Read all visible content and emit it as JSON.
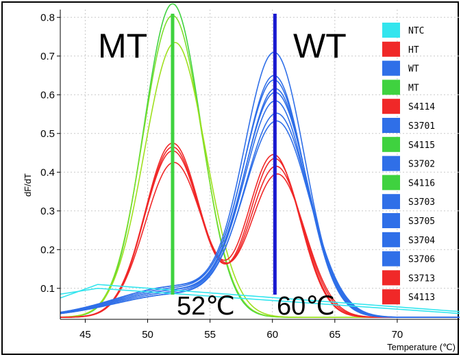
{
  "chart_data": {
    "type": "line",
    "title": "",
    "xlabel": "Temperature (℃)",
    "ylabel": "dF/dT",
    "xlim": [
      43,
      75
    ],
    "ylim": [
      0.02,
      0.82
    ],
    "x_ticks": [
      "45",
      "50",
      "55",
      "60",
      "65",
      "70"
    ],
    "x_tick_values": [
      45,
      50,
      55,
      60,
      65,
      70
    ],
    "y_ticks": [
      "0.1",
      "0.2",
      "0.3",
      "0.4",
      "0.5",
      "0.6",
      "0.7",
      "0.8"
    ],
    "y_tick_values": [
      0.1,
      0.2,
      0.3,
      0.4,
      0.5,
      0.6,
      0.7,
      0.8
    ],
    "grid": true,
    "legend_position": "right",
    "legend": [
      {
        "name": "NTC",
        "color": "#33e5ee"
      },
      {
        "name": "HT",
        "color": "#f02828"
      },
      {
        "name": "WT",
        "color": "#2f6fe8"
      },
      {
        "name": "MT",
        "color": "#3fd23f"
      },
      {
        "name": "S4114",
        "color": "#f02828"
      },
      {
        "name": "S3701",
        "color": "#2f6fe8"
      },
      {
        "name": "S4115",
        "color": "#3fd23f"
      },
      {
        "name": "S3702",
        "color": "#2f6fe8"
      },
      {
        "name": "S4116",
        "color": "#3fd23f"
      },
      {
        "name": "S3703",
        "color": "#2f6fe8"
      },
      {
        "name": "S3705",
        "color": "#2f6fe8"
      },
      {
        "name": "S3704",
        "color": "#2f6fe8"
      },
      {
        "name": "S3706",
        "color": "#2f6fe8"
      },
      {
        "name": "S3713",
        "color": "#f02828"
      },
      {
        "name": "S4113",
        "color": "#f02828"
      }
    ],
    "annotations": {
      "mt_label": "MT",
      "wt_label": "WT",
      "mt_temp": "52℃",
      "wt_temp": "60℃",
      "mt_peak_x": 52,
      "wt_peak_x": 60.2
    },
    "series": [
      {
        "group": "MT",
        "color": "#3fd23f",
        "peaks": [
          {
            "center": 52,
            "height": 0.81,
            "width": 2.3
          }
        ],
        "baseline": 0.025
      },
      {
        "group": "MT",
        "color": "#7ddf2c",
        "peaks": [
          {
            "center": 52,
            "height": 0.78,
            "width": 2.35
          }
        ],
        "baseline": 0.025
      },
      {
        "group": "MT",
        "color": "#9fe01e",
        "peaks": [
          {
            "center": 52.2,
            "height": 0.71,
            "width": 2.45
          }
        ],
        "baseline": 0.025
      },
      {
        "group": "HT",
        "color": "#f02828",
        "peaks": [
          {
            "center": 52,
            "height": 0.45,
            "width": 2.2
          },
          {
            "center": 60.1,
            "height": 0.42,
            "width": 2.1
          }
        ],
        "baseline": 0.025
      },
      {
        "group": "HT",
        "color": "#f02828",
        "peaks": [
          {
            "center": 52,
            "height": 0.44,
            "width": 2.2
          },
          {
            "center": 60.2,
            "height": 0.41,
            "width": 2.1
          }
        ],
        "baseline": 0.025
      },
      {
        "group": "HT",
        "color": "#f02828",
        "peaks": [
          {
            "center": 52,
            "height": 0.43,
            "width": 2.25
          },
          {
            "center": 60.3,
            "height": 0.39,
            "width": 2.15
          }
        ],
        "baseline": 0.025
      },
      {
        "group": "HT",
        "color": "#f02828",
        "peaks": [
          {
            "center": 52.1,
            "height": 0.4,
            "width": 2.3
          },
          {
            "center": 60.4,
            "height": 0.37,
            "width": 2.2
          }
        ],
        "baseline": 0.025
      },
      {
        "group": "WT",
        "color": "#2f6fe8",
        "peaks": [
          {
            "center": 60.2,
            "height": 0.66,
            "width": 2.4
          },
          {
            "center": 52.5,
            "height": 0.08,
            "width": 5
          }
        ],
        "baseline": 0.025
      },
      {
        "group": "WT",
        "color": "#2f6fe8",
        "peaks": [
          {
            "center": 60.2,
            "height": 0.6,
            "width": 2.4
          },
          {
            "center": 52.5,
            "height": 0.08,
            "width": 5
          }
        ],
        "baseline": 0.025
      },
      {
        "group": "WT",
        "color": "#2f6fe8",
        "peaks": [
          {
            "center": 60.2,
            "height": 0.59,
            "width": 2.45
          },
          {
            "center": 52.5,
            "height": 0.075,
            "width": 5
          }
        ],
        "baseline": 0.025
      },
      {
        "group": "WT",
        "color": "#2f6fe8",
        "peaks": [
          {
            "center": 60.3,
            "height": 0.57,
            "width": 2.45
          },
          {
            "center": 52.5,
            "height": 0.07,
            "width": 5
          }
        ],
        "baseline": 0.025
      },
      {
        "group": "WT",
        "color": "#2f6fe8",
        "peaks": [
          {
            "center": 60.3,
            "height": 0.56,
            "width": 2.5
          },
          {
            "center": 52.5,
            "height": 0.07,
            "width": 5
          }
        ],
        "baseline": 0.025
      },
      {
        "group": "WT",
        "color": "#2f6fe8",
        "peaks": [
          {
            "center": 60.3,
            "height": 0.54,
            "width": 2.5
          },
          {
            "center": 52.5,
            "height": 0.065,
            "width": 5
          }
        ],
        "baseline": 0.025
      },
      {
        "group": "WT",
        "color": "#2f6fe8",
        "peaks": [
          {
            "center": 60.4,
            "height": 0.51,
            "width": 2.55
          },
          {
            "center": 52.5,
            "height": 0.06,
            "width": 5
          }
        ],
        "baseline": 0.025
      },
      {
        "group": "WT",
        "color": "#2f6fe8",
        "peaks": [
          {
            "center": 60.4,
            "height": 0.49,
            "width": 2.6
          },
          {
            "center": 52.5,
            "height": 0.06,
            "width": 5
          }
        ],
        "baseline": 0.025
      },
      {
        "group": "NTC",
        "color": "#33e5ee",
        "linear": [
          [
            43,
            0.085
          ],
          [
            46,
            0.1
          ],
          [
            75,
            0.035
          ]
        ]
      },
      {
        "group": "NTC",
        "color": "#33e5ee",
        "linear": [
          [
            43,
            0.075
          ],
          [
            46,
            0.11
          ],
          [
            75,
            0.04
          ]
        ]
      }
    ]
  }
}
